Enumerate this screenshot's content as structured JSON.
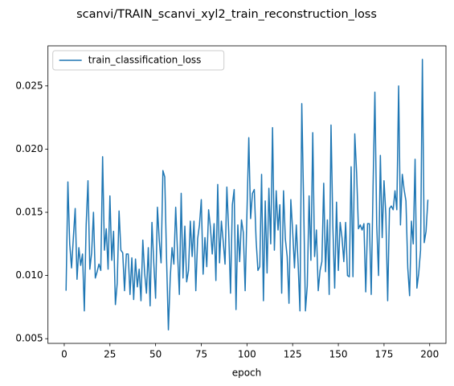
{
  "chart_data": {
    "type": "line",
    "title": "scanvi/TRAIN_scanvi_xyl2_train_reconstruction_loss",
    "xlabel": "epoch",
    "legend": "upper left",
    "xlim": [
      -8.9,
      208.9
    ],
    "ylim": [
      0.00463,
      0.02817
    ],
    "xticks": [
      0,
      25,
      50,
      75,
      100,
      125,
      150,
      175,
      200
    ],
    "yticks": [
      0.005,
      {
        "value": 0.01,
        "label": "0.010"
      },
      0.015,
      {
        "value": 0.02,
        "label": "0.020"
      },
      0.025
    ],
    "x": [
      1,
      2,
      3,
      4,
      5,
      6,
      7,
      8,
      9,
      10,
      11,
      12,
      13,
      14,
      15,
      16,
      17,
      18,
      19,
      20,
      21,
      22,
      23,
      24,
      25,
      26,
      27,
      28,
      29,
      30,
      31,
      32,
      33,
      34,
      35,
      36,
      37,
      38,
      39,
      40,
      41,
      42,
      43,
      44,
      45,
      46,
      47,
      48,
      49,
      50,
      51,
      52,
      53,
      54,
      55,
      56,
      57,
      58,
      59,
      60,
      61,
      62,
      63,
      64,
      65,
      66,
      67,
      68,
      69,
      70,
      71,
      72,
      73,
      74,
      75,
      76,
      77,
      78,
      79,
      80,
      81,
      82,
      83,
      84,
      85,
      86,
      87,
      88,
      89,
      90,
      91,
      92,
      93,
      94,
      95,
      96,
      97,
      98,
      99,
      100,
      101,
      102,
      103,
      104,
      105,
      106,
      107,
      108,
      109,
      110,
      111,
      112,
      113,
      114,
      115,
      116,
      117,
      118,
      119,
      120,
      121,
      122,
      123,
      124,
      125,
      126,
      127,
      128,
      129,
      130,
      131,
      132,
      133,
      134,
      135,
      136,
      137,
      138,
      139,
      140,
      141,
      142,
      143,
      144,
      145,
      146,
      147,
      148,
      149,
      150,
      151,
      152,
      153,
      154,
      155,
      156,
      157,
      158,
      159,
      160,
      161,
      162,
      163,
      164,
      165,
      166,
      167,
      168,
      169,
      170,
      171,
      172,
      173,
      174,
      175,
      176,
      177,
      178,
      179,
      180,
      181,
      182,
      183,
      184,
      185,
      186,
      187,
      188,
      189,
      190,
      191,
      192,
      193,
      194,
      195,
      196,
      197,
      198,
      199
    ],
    "series": [
      {
        "name": "train_classification_loss",
        "color": "#1f77b4",
        "values": [
          0.0088,
          0.0174,
          0.0125,
          0.0106,
          0.013,
          0.0153,
          0.0097,
          0.0122,
          0.0108,
          0.0117,
          0.0072,
          0.014,
          0.0175,
          0.0105,
          0.0118,
          0.015,
          0.0098,
          0.0103,
          0.0109,
          0.0104,
          0.0194,
          0.012,
          0.0137,
          0.0105,
          0.0163,
          0.0112,
          0.0135,
          0.0077,
          0.0094,
          0.0151,
          0.012,
          0.0118,
          0.0088,
          0.0117,
          0.0117,
          0.0085,
          0.0114,
          0.0081,
          0.0113,
          0.0091,
          0.0105,
          0.008,
          0.0128,
          0.0102,
          0.0086,
          0.0122,
          0.0076,
          0.0142,
          0.011,
          0.0082,
          0.0154,
          0.0128,
          0.011,
          0.0183,
          0.0178,
          0.0113,
          0.0057,
          0.0098,
          0.0122,
          0.0109,
          0.0154,
          0.0118,
          0.0085,
          0.0165,
          0.0098,
          0.0139,
          0.0095,
          0.0104,
          0.0143,
          0.0115,
          0.0143,
          0.0088,
          0.0129,
          0.014,
          0.016,
          0.0101,
          0.013,
          0.0107,
          0.0152,
          0.0138,
          0.0117,
          0.0141,
          0.0096,
          0.0172,
          0.011,
          0.0143,
          0.0127,
          0.0109,
          0.017,
          0.0135,
          0.0086,
          0.0156,
          0.0168,
          0.0073,
          0.014,
          0.0111,
          0.0144,
          0.0134,
          0.0088,
          0.015,
          0.0209,
          0.0145,
          0.0165,
          0.0168,
          0.0128,
          0.0104,
          0.0107,
          0.018,
          0.008,
          0.0159,
          0.0102,
          0.0169,
          0.0125,
          0.0217,
          0.012,
          0.0167,
          0.0136,
          0.0156,
          0.0086,
          0.0167,
          0.0129,
          0.0115,
          0.0078,
          0.016,
          0.0135,
          0.0106,
          0.014,
          0.0109,
          0.0072,
          0.0236,
          0.0158,
          0.0072,
          0.0092,
          0.0163,
          0.0112,
          0.0213,
          0.0115,
          0.0136,
          0.0088,
          0.0104,
          0.0111,
          0.0173,
          0.0103,
          0.0144,
          0.0085,
          0.0219,
          0.0139,
          0.009,
          0.0158,
          0.0104,
          0.0142,
          0.013,
          0.0111,
          0.0142,
          0.01,
          0.0099,
          0.0186,
          0.0099,
          0.0212,
          0.0181,
          0.0137,
          0.014,
          0.0136,
          0.0141,
          0.0087,
          0.0141,
          0.0141,
          0.0085,
          0.017,
          0.0245,
          0.014,
          0.01,
          0.0195,
          0.013,
          0.0175,
          0.0148,
          0.008,
          0.0153,
          0.0155,
          0.0152,
          0.0167,
          0.0152,
          0.025,
          0.014,
          0.018,
          0.0168,
          0.0159,
          0.0106,
          0.0084,
          0.0143,
          0.0125,
          0.0192,
          0.009,
          0.0102,
          0.012,
          0.0271,
          0.0126,
          0.0135,
          0.016
        ]
      }
    ]
  }
}
